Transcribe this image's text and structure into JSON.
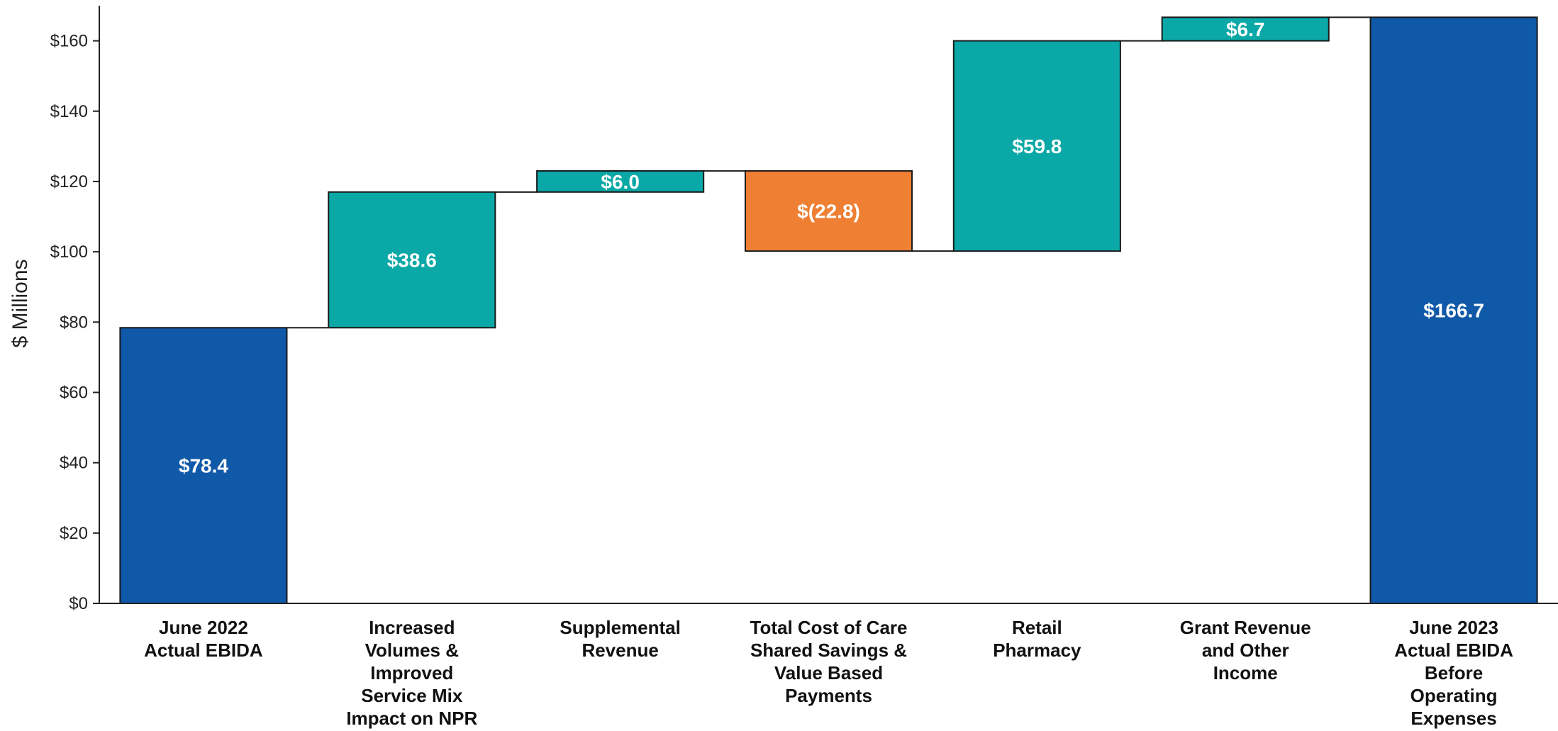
{
  "chart_data": {
    "type": "bar",
    "subtype": "waterfall",
    "ylabel": "$ Millions",
    "ylim": [
      0,
      170
    ],
    "yticks": [
      0,
      20,
      40,
      60,
      80,
      100,
      120,
      140,
      160
    ],
    "ytick_labels": [
      "$0",
      "$20",
      "$40",
      "$60",
      "$80",
      "$100",
      "$120",
      "$140",
      "$160"
    ],
    "grid": false,
    "legend": "none",
    "colors": {
      "total": "#1059a8",
      "increase": "#0aa8a6",
      "decrease": "#ee7f33"
    },
    "bars": [
      {
        "category_lines": [
          "June 2022",
          "Actual EBIDA"
        ],
        "kind": "total",
        "start": 0,
        "end": 78.4,
        "label": "$78.4"
      },
      {
        "category_lines": [
          "Increased",
          "Volumes &",
          "Improved",
          "Service Mix",
          "Impact on NPR"
        ],
        "kind": "increase",
        "start": 78.4,
        "end": 117.0,
        "label": "$38.6"
      },
      {
        "category_lines": [
          "Supplemental",
          "Revenue"
        ],
        "kind": "increase",
        "start": 117.0,
        "end": 123.0,
        "label": "$6.0"
      },
      {
        "category_lines": [
          "Total Cost of Care",
          "Shared Savings &",
          "Value Based",
          "Payments"
        ],
        "kind": "decrease",
        "start": 123.0,
        "end": 100.2,
        "label": "$(22.8)"
      },
      {
        "category_lines": [
          "Retail",
          "Pharmacy"
        ],
        "kind": "increase",
        "start": 100.2,
        "end": 160.0,
        "label": "$59.8"
      },
      {
        "category_lines": [
          "Grant Revenue",
          "and Other",
          "Income"
        ],
        "kind": "increase",
        "start": 160.0,
        "end": 166.7,
        "label": "$6.7"
      },
      {
        "category_lines": [
          "June 2023",
          "Actual EBIDA",
          "Before",
          "Operating",
          "Expenses"
        ],
        "kind": "total",
        "start": 0,
        "end": 166.7,
        "label": "$166.7"
      }
    ]
  }
}
